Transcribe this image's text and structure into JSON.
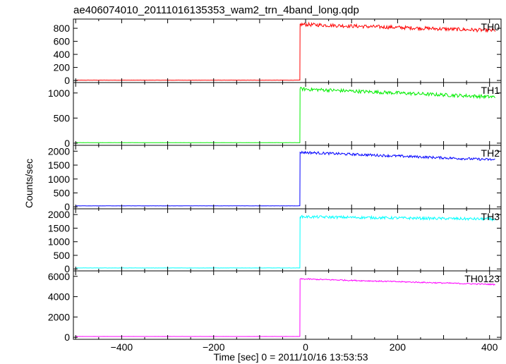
{
  "chart_data": {
    "type": "line",
    "title": "ae406074010_20111016135353_wam2_trn_4band_long.qdp",
    "xlabel": "Time [sec] 0 = 2011/10/16 13:53:53",
    "ylabel": "Counts/sec",
    "xlim": [
      -505,
      425
    ],
    "x_ticks": [
      -400,
      -200,
      0,
      200,
      400
    ],
    "x_tick_labels": [
      "−400",
      "−200",
      "0",
      "200",
      "400"
    ],
    "grid": false,
    "panels": [
      {
        "name": "TH0",
        "color": "#ff0000",
        "ylim": [
          -10,
          920
        ],
        "y_ticks": [
          0,
          200,
          400,
          600,
          800
        ],
        "pre_level": 5,
        "jump_x": -12,
        "peak": 860,
        "end_level": 765,
        "noise": 28
      },
      {
        "name": "TH1",
        "color": "#00ee00",
        "ylim": [
          -15,
          1180
        ],
        "y_ticks": [
          0,
          500,
          1000
        ],
        "pre_level": 10,
        "jump_x": -12,
        "peak": 1080,
        "end_level": 920,
        "noise": 35
      },
      {
        "name": "TH2",
        "color": "#0000ff",
        "ylim": [
          -20,
          2160
        ],
        "y_ticks": [
          0,
          500,
          1000,
          1500,
          2000
        ],
        "pre_level": 35,
        "jump_x": -12,
        "peak": 1960,
        "end_level": 1690,
        "noise": 45
      },
      {
        "name": "TH3",
        "color": "#00ffff",
        "ylim": [
          -20,
          2160
        ],
        "y_ticks": [
          0,
          500,
          1000,
          1500,
          2000
        ],
        "pre_level": 35,
        "jump_x": -12,
        "peak": 1920,
        "end_level": 1830,
        "noise": 50
      },
      {
        "name": "TH0123",
        "color": "#ff00ff",
        "ylim": [
          -60,
          6400
        ],
        "y_ticks": [
          0,
          2000,
          4000,
          6000
        ],
        "pre_level": 80,
        "jump_x": -12,
        "peak": 5750,
        "end_level": 5200,
        "noise": 60
      }
    ]
  }
}
